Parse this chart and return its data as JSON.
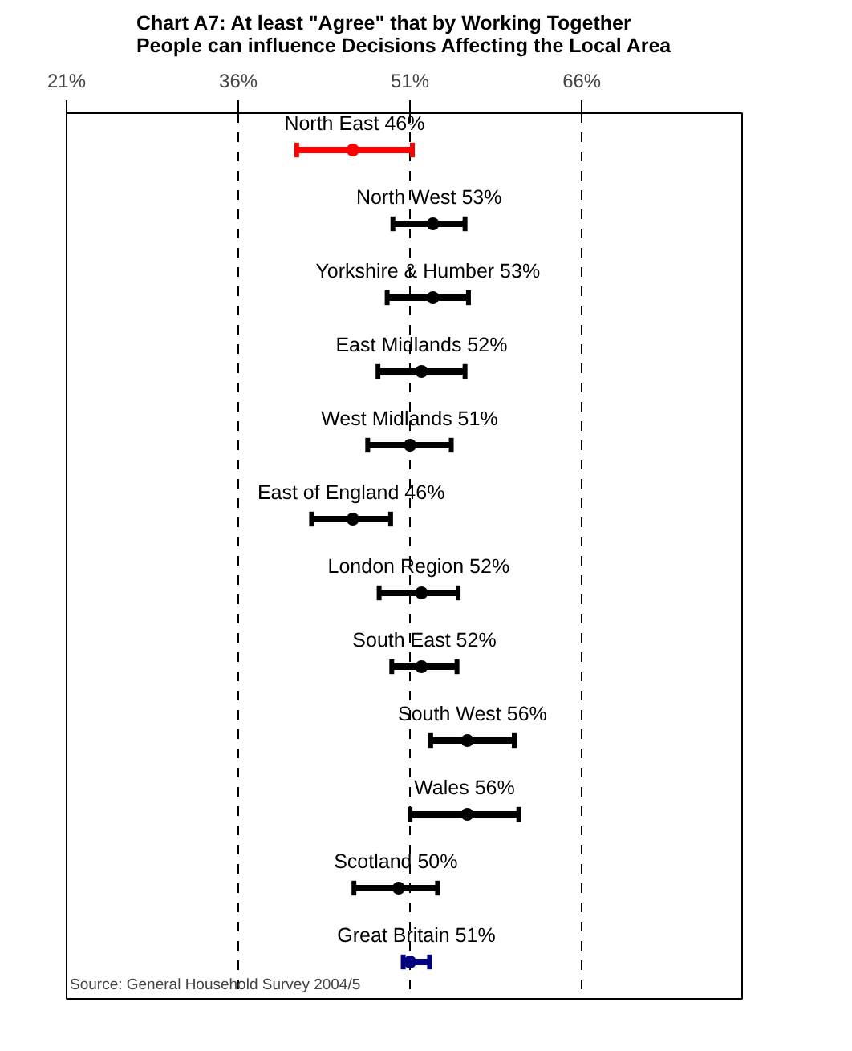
{
  "chart_data": {
    "type": "scatter",
    "orientation": "horizontal",
    "title": "Chart A7: At least \"Agree\" that by Working Together\nPeople can influence Decisions Affecting the Local Area",
    "categories": [
      "North East",
      "North West",
      "Yorkshire & Humber",
      "East Midlands",
      "West Midlands",
      "East of England",
      "London Region",
      "South East",
      "South West",
      "Wales",
      "Scotland",
      "Great Britain"
    ],
    "values": [
      46,
      53,
      53,
      52,
      51,
      46,
      52,
      52,
      56,
      56,
      50,
      51
    ],
    "errors": [
      [
        41.1,
        51.2
      ],
      [
        49.5,
        55.8
      ],
      [
        49.0,
        56.1
      ],
      [
        48.2,
        55.8
      ],
      [
        47.3,
        54.6
      ],
      [
        42.4,
        49.3
      ],
      [
        48.3,
        55.2
      ],
      [
        49.4,
        55.1
      ],
      [
        52.8,
        60.1
      ],
      [
        51.0,
        60.5
      ],
      [
        46.1,
        53.4
      ],
      [
        50.4,
        52.7
      ]
    ],
    "value_labels": [
      "46%",
      "53%",
      "53%",
      "52%",
      "51%",
      "46%",
      "52%",
      "52%",
      "56%",
      "56%",
      "50%",
      "51%"
    ],
    "colors": [
      "#ff0000",
      "#000000",
      "#000000",
      "#000000",
      "#000000",
      "#000000",
      "#000000",
      "#000000",
      "#000000",
      "#000000",
      "#000000",
      "#000080"
    ],
    "xlim": [
      21,
      80
    ],
    "xticks": [
      {
        "value": 21,
        "label": "21%"
      },
      {
        "value": 36,
        "label": "36%"
      },
      {
        "value": 51,
        "label": "51%"
      },
      {
        "value": 66,
        "label": "66%"
      }
    ],
    "grid": "x",
    "tick_labels": "x",
    "marker": "circle",
    "annotations": [
      "Source: General Household Survey 2004/5"
    ]
  }
}
